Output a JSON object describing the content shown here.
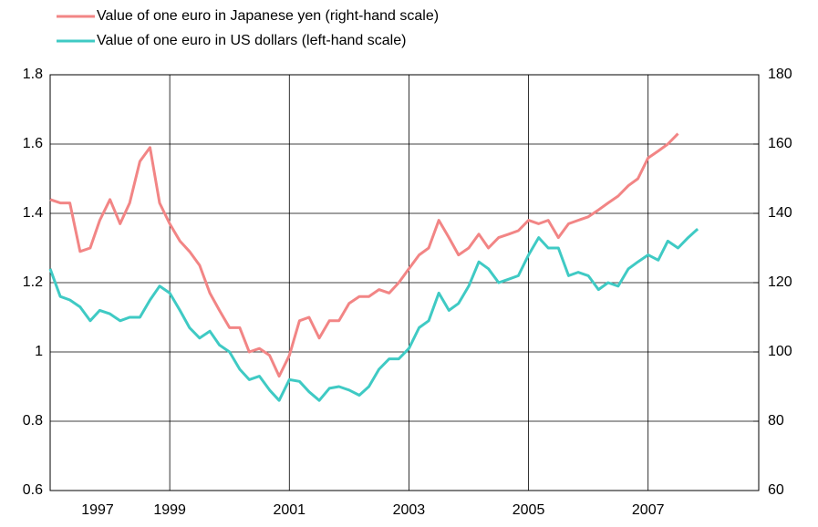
{
  "chart_data": {
    "type": "line",
    "x": [
      1997.0,
      1997.17,
      1997.33,
      1997.5,
      1997.67,
      1997.83,
      1998.0,
      1998.17,
      1998.33,
      1998.5,
      1998.67,
      1998.83,
      1999.0,
      1999.17,
      1999.33,
      1999.5,
      1999.67,
      1999.83,
      2000.0,
      2000.17,
      2000.33,
      2000.5,
      2000.67,
      2000.83,
      2001.0,
      2001.17,
      2001.33,
      2001.5,
      2001.67,
      2001.83,
      2002.0,
      2002.17,
      2002.33,
      2002.5,
      2002.67,
      2002.83,
      2003.0,
      2003.17,
      2003.33,
      2003.5,
      2003.67,
      2003.83,
      2004.0,
      2004.17,
      2004.33,
      2004.5,
      2004.67,
      2004.83,
      2005.0,
      2005.17,
      2005.33,
      2005.5,
      2005.67,
      2005.83,
      2006.0,
      2006.17,
      2006.33,
      2006.5,
      2006.67,
      2006.83,
      2007.0,
      2007.17,
      2007.33,
      2007.5,
      2007.67,
      2007.83
    ],
    "series": [
      {
        "name": "Value of one euro in Japanese yen (right-hand scale)",
        "color": "#f28585",
        "axis": "y2",
        "values": [
          144,
          143,
          143,
          129,
          130,
          138,
          144,
          137,
          143,
          155,
          159,
          143,
          137,
          132,
          129,
          125,
          117,
          112,
          107,
          107,
          100,
          101,
          99,
          93,
          99,
          109,
          110,
          104,
          109,
          109,
          114,
          116,
          116,
          118,
          117,
          120,
          124,
          128,
          130,
          138,
          133,
          128,
          130,
          134,
          130,
          133,
          134,
          135,
          138,
          137,
          138,
          133,
          137,
          138,
          139,
          141,
          143,
          145,
          148,
          150,
          156,
          158,
          160,
          163,
          null,
          null
        ]
      },
      {
        "name": "Value of one euro in US dollars (left-hand scale)",
        "color": "#3fcac4",
        "values": [
          1.24,
          1.16,
          1.15,
          1.13,
          1.09,
          1.12,
          1.11,
          1.09,
          1.1,
          1.1,
          1.15,
          1.19,
          1.17,
          1.12,
          1.07,
          1.04,
          1.06,
          1.02,
          1.0,
          0.95,
          0.92,
          0.93,
          0.89,
          0.86,
          0.92,
          0.915,
          0.885,
          0.86,
          0.895,
          0.9,
          0.89,
          0.875,
          0.9,
          0.95,
          0.98,
          0.98,
          1.01,
          1.07,
          1.09,
          1.17,
          1.12,
          1.14,
          1.19,
          1.26,
          1.24,
          1.2,
          1.21,
          1.22,
          1.28,
          1.33,
          1.3,
          1.3,
          1.22,
          1.23,
          1.22,
          1.18,
          1.2,
          1.19,
          1.24,
          1.26,
          1.28,
          1.265,
          1.32,
          1.3,
          1.33,
          1.355
        ]
      }
    ],
    "xlim": [
      1997,
      2008.85
    ],
    "xticks": [
      1997,
      1999,
      2001,
      2003,
      2005,
      2007
    ],
    "ylim": [
      0.6,
      1.8
    ],
    "yticks": [
      0.6,
      0.8,
      1,
      1.2,
      1.4,
      1.6,
      1.8
    ],
    "y2lim": [
      60,
      180
    ],
    "y2ticks": [
      60,
      80,
      100,
      120,
      140,
      160,
      180
    ],
    "grid": true,
    "legend": "top-left"
  }
}
